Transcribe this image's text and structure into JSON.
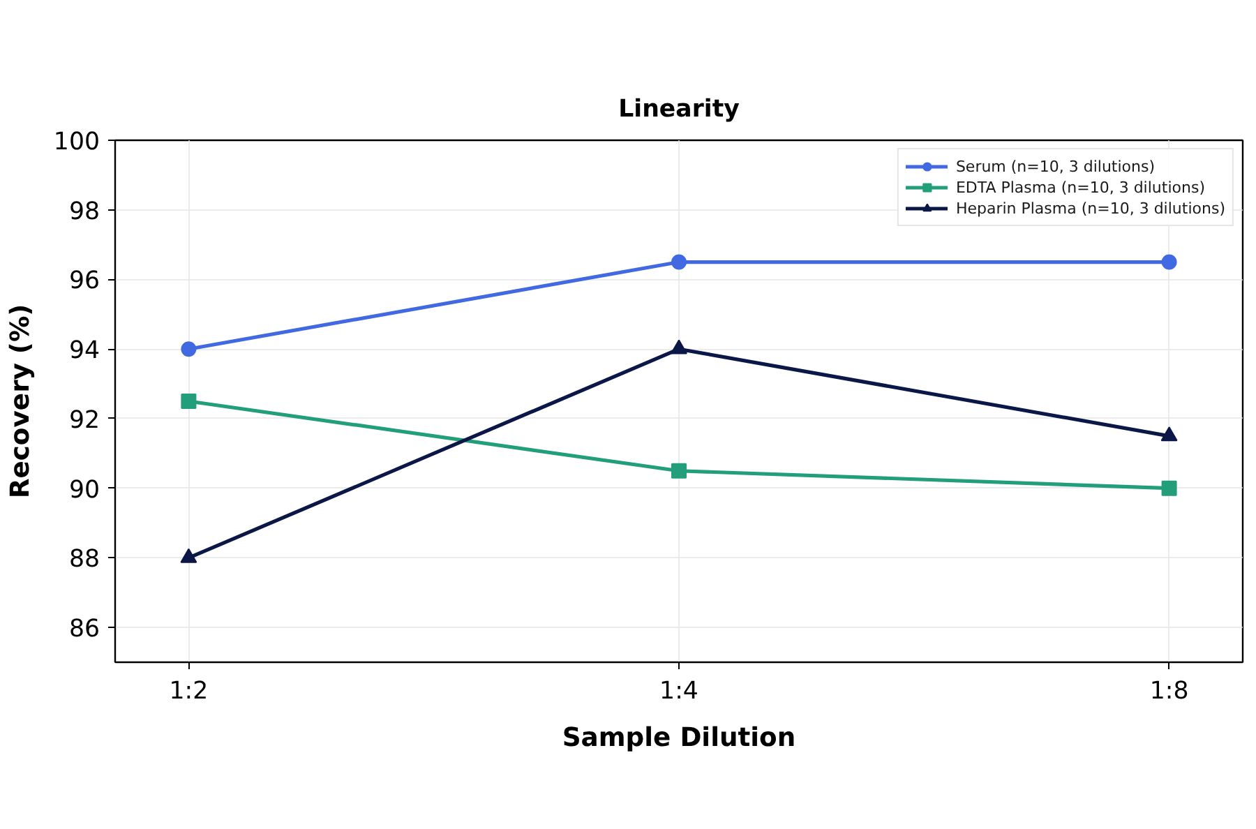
{
  "chart_data": {
    "type": "line",
    "title": "Linearity",
    "xlabel": "Sample Dilution",
    "ylabel": "Recovery (%)",
    "categories": [
      "1:2",
      "1:4",
      "1:8"
    ],
    "series": [
      {
        "name": "Serum (n=10, 3 dilutions)",
        "color": "#4169e1",
        "marker": "circle",
        "values": [
          94,
          96.5,
          96.5
        ]
      },
      {
        "name": "EDTA Plasma (n=10, 3 dilutions)",
        "color": "#229e7a",
        "marker": "square",
        "values": [
          92.5,
          90.5,
          90
        ]
      },
      {
        "name": "Heparin Plasma (n=10, 3 dilutions)",
        "color": "#0b1746",
        "marker": "triangle",
        "values": [
          88,
          94,
          91.5
        ]
      }
    ],
    "ylim": [
      85,
      100
    ],
    "yticks": [
      86,
      88,
      90,
      92,
      94,
      96,
      98,
      100
    ],
    "grid": true,
    "legend": "top right"
  }
}
